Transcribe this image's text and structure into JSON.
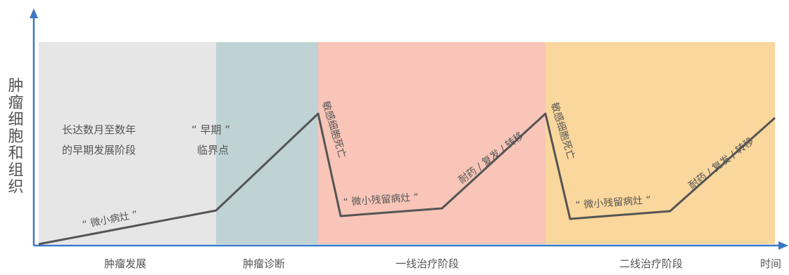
{
  "axes": {
    "y_label": "肿瘤细胞和组织",
    "x_label": "时间"
  },
  "phases": [
    {
      "label": "肿瘤发展",
      "color": "#e6e6e6"
    },
    {
      "label": "肿瘤诊断",
      "color": "#bfd3d5"
    },
    {
      "label": "一线治疗阶段",
      "color": "#f8c5b8"
    },
    {
      "label": "二线治疗阶段",
      "color": "#fad79c"
    }
  ],
  "annotations": {
    "early_dev_line1": "长达数月至数年",
    "early_dev_line2": "的早期发展阶段",
    "critical_line1": "“ 早期 ”",
    "critical_line2": "临界点",
    "micro_lesion": "“ 微小病灶 ”",
    "sensitive_death_1": "敏感细胞死亡",
    "residual_1": "“ 微小残留病灶 ”",
    "resistance_1": "耐药 / 复发 / 转移",
    "sensitive_death_2": "敏感细胞死亡",
    "residual_2": "“ 微小残留病灶 ”",
    "resistance_2": "耐药 / 复发 / 转移"
  },
  "colors": {
    "axis": "#3a78c3",
    "curve": "#555555",
    "text": "#555555"
  }
}
